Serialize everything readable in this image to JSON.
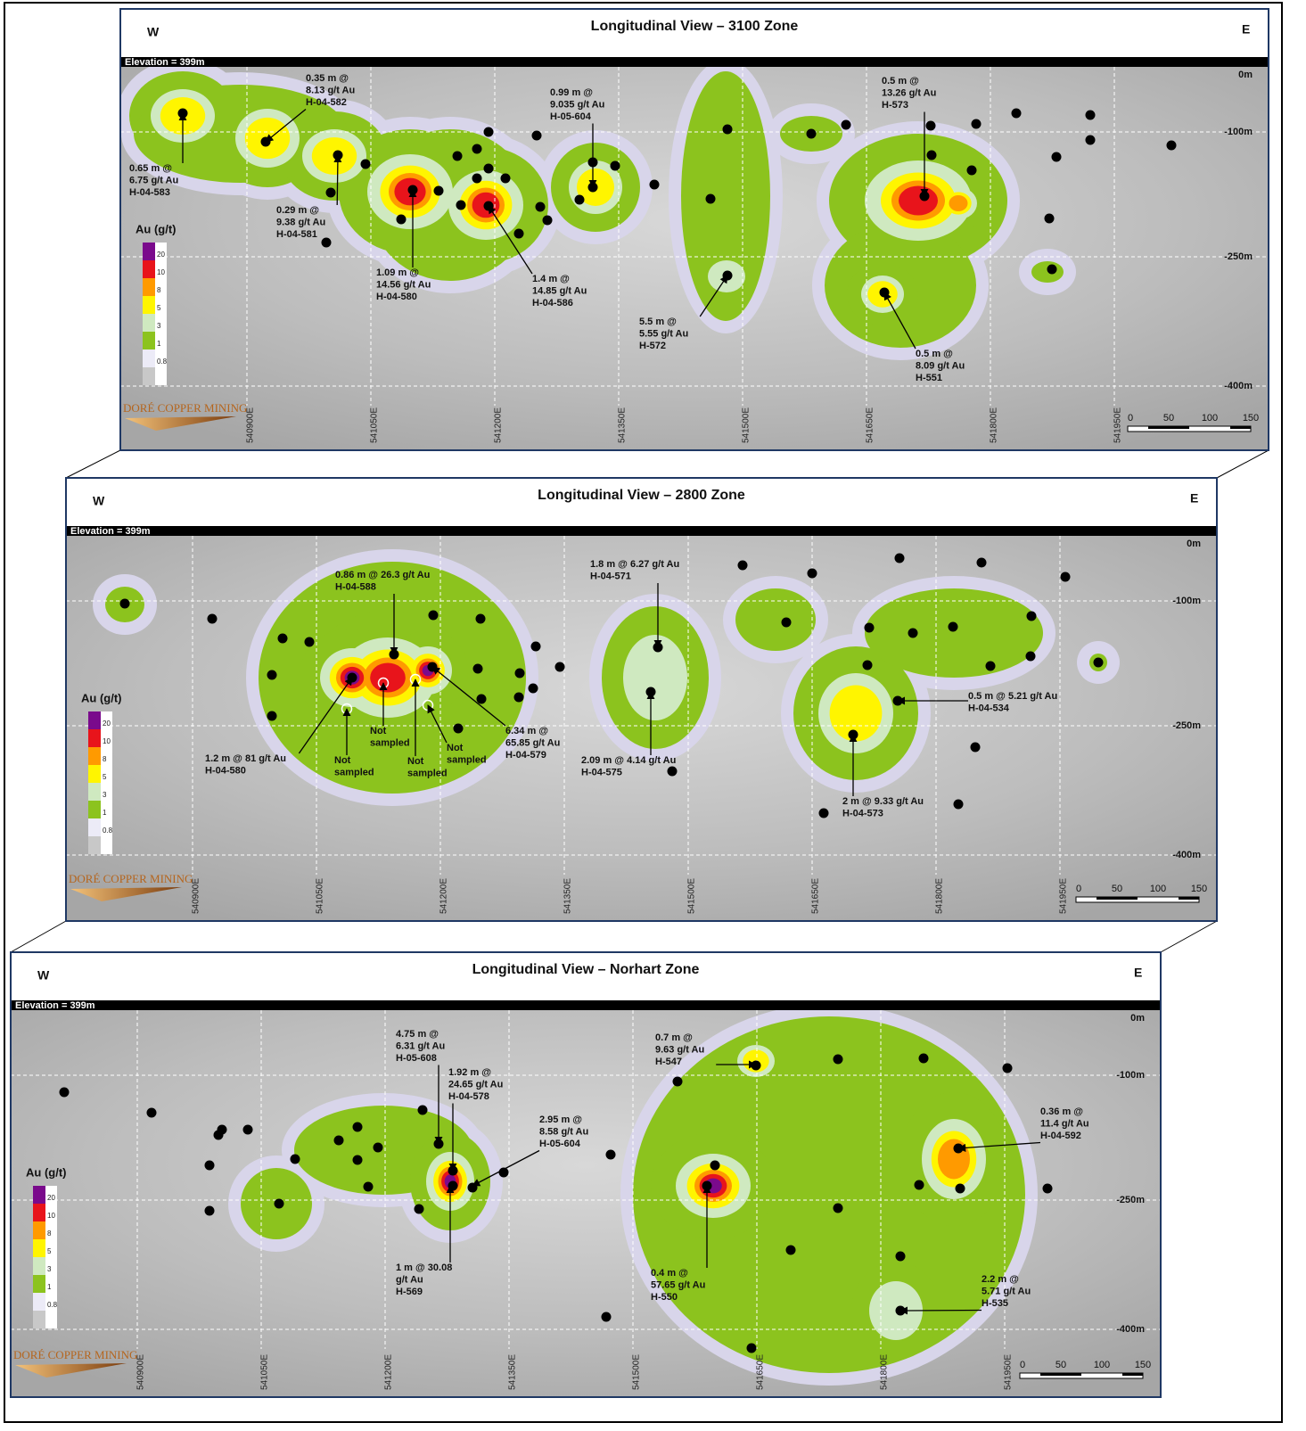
{
  "panels": [
    {
      "title": "Longitudinal View – 3100 Zone",
      "west": "W",
      "east": "E",
      "elevation": "Elevation = 399m",
      "depth_labels": [
        "0m",
        "-100m",
        "-250m",
        "-400m"
      ],
      "eastings": [
        "540900E",
        "541050E",
        "541200E",
        "541350E",
        "541500E",
        "541650E",
        "541800E",
        "541950E"
      ],
      "scale_labels": [
        "0",
        "50",
        "100",
        "150"
      ],
      "legend_title": "Au (g/t)",
      "legend_values": [
        "20",
        "10",
        "8",
        "5",
        "3",
        "1",
        "0.8"
      ],
      "logo": "DORÉ COPPER MINING",
      "annotations": [
        {
          "lines": [
            "0.35 m @",
            "8.13 g/t Au",
            "H-04-582"
          ]
        },
        {
          "lines": [
            "0.65 m @",
            "6.75 g/t Au",
            "H-04-583"
          ]
        },
        {
          "lines": [
            "0.29 m @",
            "9.38 g/t Au",
            "H-04-581"
          ]
        },
        {
          "lines": [
            "1.09 m @",
            "14.56 g/t Au",
            "H-04-580"
          ]
        },
        {
          "lines": [
            "1.4 m @",
            "14.85 g/t Au",
            "H-04-586"
          ]
        },
        {
          "lines": [
            "0.99 m @",
            "9.035 g/t Au",
            "H-05-604"
          ]
        },
        {
          "lines": [
            "0.5 m @",
            "13.26 g/t Au",
            "H-573"
          ]
        },
        {
          "lines": [
            "5.5 m @",
            "5.55 g/t Au",
            "H-572"
          ]
        },
        {
          "lines": [
            "0.5 m @",
            "8.09 g/t Au",
            "H-551"
          ]
        }
      ]
    },
    {
      "title": "Longitudinal View – 2800 Zone",
      "west": "W",
      "east": "E",
      "elevation": "Elevation = 399m",
      "depth_labels": [
        "0m",
        "-100m",
        "-250m",
        "-400m"
      ],
      "eastings": [
        "540900E",
        "541050E",
        "541200E",
        "541350E",
        "541500E",
        "541650E",
        "541800E",
        "541950E"
      ],
      "scale_labels": [
        "0",
        "50",
        "100",
        "150"
      ],
      "legend_title": "Au (g/t)",
      "legend_values": [
        "20",
        "10",
        "8",
        "5",
        "3",
        "1",
        "0.8"
      ],
      "logo": "DORÉ COPPER MINING",
      "annotations": [
        {
          "lines": [
            "0.86 m @ 26.3 g/t Au",
            "H-04-588"
          ]
        },
        {
          "lines": [
            "1.2 m @ 81 g/t Au",
            "H-04-580"
          ]
        },
        {
          "lines": [
            "Not",
            "sampled"
          ]
        },
        {
          "lines": [
            "Not",
            "sampled"
          ]
        },
        {
          "lines": [
            "Not",
            "sampled"
          ]
        },
        {
          "lines": [
            "Not",
            "sampled"
          ]
        },
        {
          "lines": [
            "6.34 m @",
            "65.85 g/t Au",
            "H-04-579"
          ]
        },
        {
          "lines": [
            "1.8 m @ 6.27 g/t Au",
            "H-04-571"
          ]
        },
        {
          "lines": [
            "2.09 m @ 4.14 g/t Au",
            "H-04-575"
          ]
        },
        {
          "lines": [
            "0.5 m @ 5.21 g/t Au",
            "H-04-534"
          ]
        },
        {
          "lines": [
            "2 m @ 9.33 g/t Au",
            "H-04-573"
          ]
        }
      ]
    },
    {
      "title": "Longitudinal View – Norhart Zone",
      "west": "W",
      "east": "E",
      "elevation": "Elevation = 399m",
      "depth_labels": [
        "0m",
        "-100m",
        "-250m",
        "-400m"
      ],
      "eastings": [
        "540900E",
        "541050E",
        "541200E",
        "541350E",
        "541500E",
        "541650E",
        "541800E",
        "541950E"
      ],
      "scale_labels": [
        "0",
        "50",
        "100",
        "150"
      ],
      "legend_title": "Au (g/t)",
      "legend_values": [
        "20",
        "10",
        "8",
        "5",
        "3",
        "1",
        "0.8"
      ],
      "logo": "DORÉ COPPER MINING",
      "annotations": [
        {
          "lines": [
            "4.75 m @",
            "6.31 g/t Au",
            "H-05-608"
          ]
        },
        {
          "lines": [
            "1.92 m @",
            "24.65 g/t Au",
            "H-04-578"
          ]
        },
        {
          "lines": [
            "2.95 m @",
            "8.58 g/t Au",
            "H-05-604"
          ]
        },
        {
          "lines": [
            "1 m @ 30.08",
            "g/t Au",
            "H-569"
          ]
        },
        {
          "lines": [
            "0.7 m @",
            "9.63 g/t Au",
            "H-547"
          ]
        },
        {
          "lines": [
            "0.4 m @",
            "57.65 g/t Au",
            "H-550"
          ]
        },
        {
          "lines": [
            "0.36 m @",
            "11.4 g/t Au",
            "H-04-592"
          ]
        },
        {
          "lines": [
            "2.2 m @",
            "5.71 g/t Au",
            "H-535"
          ]
        }
      ]
    }
  ]
}
